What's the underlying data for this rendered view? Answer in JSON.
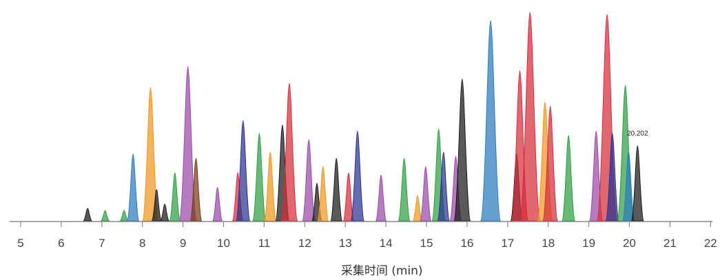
{
  "chart_data": {
    "type": "area",
    "title": "",
    "xlabel": "采集时间 (min)",
    "ylabel": "",
    "xlim": [
      4.7,
      22.2
    ],
    "ylim": [
      0,
      100
    ],
    "xticks": [
      "5",
      "6",
      "7",
      "8",
      "9",
      "10",
      "11",
      "12",
      "13",
      "14",
      "15",
      "16",
      "17",
      "18",
      "19",
      "20",
      "21",
      "22"
    ],
    "grid": false,
    "legend": "none",
    "colors": {
      "black": "#1a1a1a",
      "green": "#2f9e44",
      "blue": "#2b7bbf",
      "orange": "#f0961e",
      "purple": "#9b4aa6",
      "red": "#d62c3a",
      "navy": "#2a3390",
      "brown": "#7a3b1a"
    },
    "annotations": [
      {
        "x": 20.2,
        "y": 40,
        "text": "20.202"
      }
    ],
    "peaks": [
      {
        "rt": 6.65,
        "height": 6,
        "color": "black"
      },
      {
        "rt": 7.08,
        "height": 5,
        "color": "green"
      },
      {
        "rt": 7.55,
        "height": 5,
        "color": "green"
      },
      {
        "rt": 7.77,
        "height": 32,
        "color": "blue"
      },
      {
        "rt": 8.2,
        "height": 64,
        "color": "orange"
      },
      {
        "rt": 8.35,
        "height": 15,
        "color": "black"
      },
      {
        "rt": 8.55,
        "height": 8,
        "color": "black"
      },
      {
        "rt": 8.8,
        "height": 23,
        "color": "green"
      },
      {
        "rt": 9.12,
        "height": 74,
        "color": "purple"
      },
      {
        "rt": 9.32,
        "height": 30,
        "color": "brown"
      },
      {
        "rt": 9.85,
        "height": 16,
        "color": "purple"
      },
      {
        "rt": 10.35,
        "height": 23,
        "color": "red"
      },
      {
        "rt": 10.48,
        "height": 48,
        "color": "navy"
      },
      {
        "rt": 10.88,
        "height": 42,
        "color": "green"
      },
      {
        "rt": 11.15,
        "height": 33,
        "color": "orange"
      },
      {
        "rt": 11.45,
        "height": 46,
        "color": "black"
      },
      {
        "rt": 11.62,
        "height": 66,
        "color": "red"
      },
      {
        "rt": 12.1,
        "height": 39,
        "color": "purple"
      },
      {
        "rt": 12.3,
        "height": 18,
        "color": "black"
      },
      {
        "rt": 12.45,
        "height": 26,
        "color": "orange"
      },
      {
        "rt": 12.78,
        "height": 30,
        "color": "black"
      },
      {
        "rt": 13.08,
        "height": 23,
        "color": "red"
      },
      {
        "rt": 13.3,
        "height": 43,
        "color": "navy"
      },
      {
        "rt": 13.88,
        "height": 22,
        "color": "purple"
      },
      {
        "rt": 14.45,
        "height": 30,
        "color": "green"
      },
      {
        "rt": 14.78,
        "height": 12,
        "color": "orange"
      },
      {
        "rt": 14.98,
        "height": 26,
        "color": "purple"
      },
      {
        "rt": 15.3,
        "height": 44,
        "color": "green"
      },
      {
        "rt": 15.42,
        "height": 33,
        "color": "navy"
      },
      {
        "rt": 15.72,
        "height": 31,
        "color": "purple"
      },
      {
        "rt": 15.88,
        "height": 68,
        "color": "black"
      },
      {
        "rt": 16.58,
        "height": 96,
        "color": "blue"
      },
      {
        "rt": 17.22,
        "height": 32,
        "color": "black"
      },
      {
        "rt": 17.3,
        "height": 72,
        "color": "red"
      },
      {
        "rt": 17.55,
        "height": 100,
        "color": "red"
      },
      {
        "rt": 17.92,
        "height": 57,
        "color": "orange"
      },
      {
        "rt": 18.05,
        "height": 55,
        "color": "red"
      },
      {
        "rt": 18.5,
        "height": 41,
        "color": "green"
      },
      {
        "rt": 19.18,
        "height": 43,
        "color": "purple"
      },
      {
        "rt": 19.45,
        "height": 99,
        "color": "red"
      },
      {
        "rt": 19.58,
        "height": 42,
        "color": "navy"
      },
      {
        "rt": 19.9,
        "height": 65,
        "color": "green"
      },
      {
        "rt": 19.98,
        "height": 33,
        "color": "blue"
      },
      {
        "rt": 20.2,
        "height": 36,
        "color": "black"
      }
    ]
  }
}
